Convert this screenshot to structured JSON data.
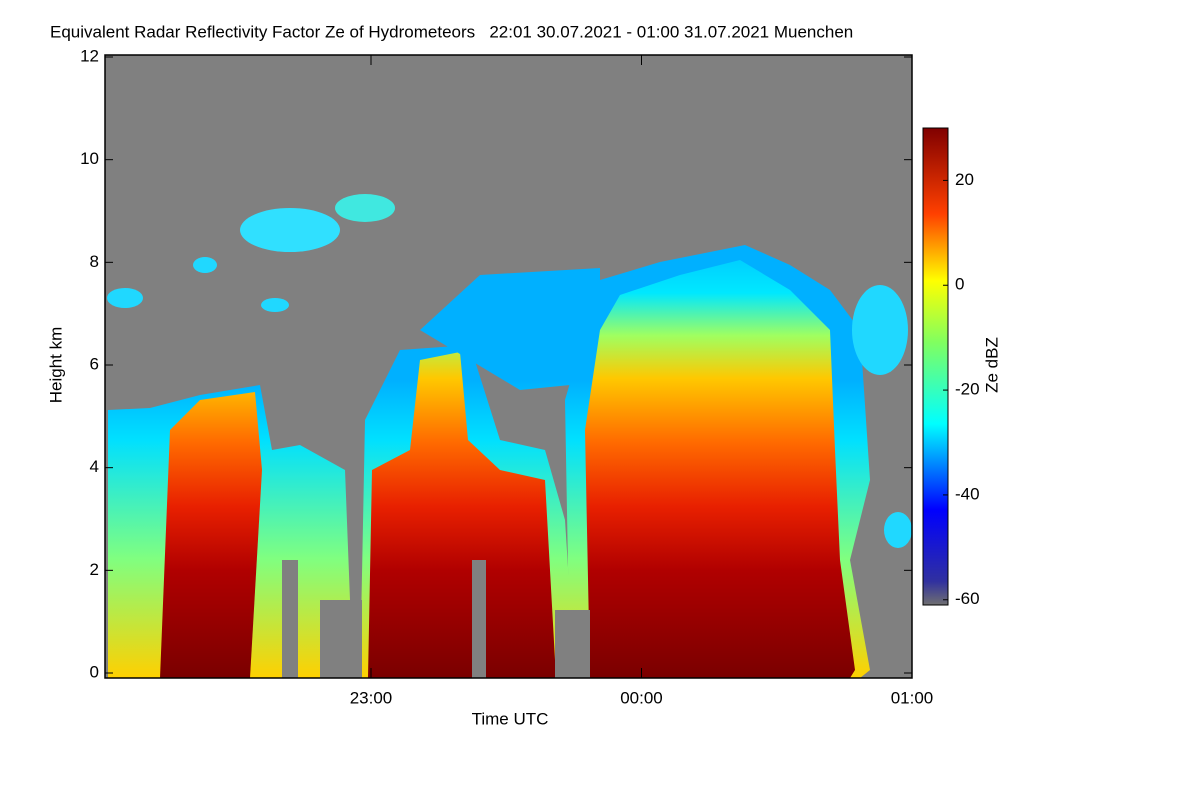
{
  "chart_data": {
    "type": "heatmap",
    "title": "Equivalent Radar Reflectivity Factor Ze of Hydrometeors   22:01 30.07.2021 - 01:00 31.07.2021 Muenchen",
    "xlabel": "Time UTC",
    "ylabel": "Height km",
    "xlim": [
      1,
      180
    ],
    "xticks": [
      {
        "value": 60,
        "label": "23:00"
      },
      {
        "value": 120,
        "label": "00:00"
      },
      {
        "value": 180,
        "label": "01:00"
      }
    ],
    "ylim": [
      0,
      12
    ],
    "yticks": [
      0,
      2,
      4,
      6,
      8,
      10,
      12
    ],
    "colorbar_label": "Ze dBZ",
    "clim": [
      -61,
      30
    ],
    "cticks": [
      20,
      0,
      -20,
      -40,
      -60
    ]
  }
}
